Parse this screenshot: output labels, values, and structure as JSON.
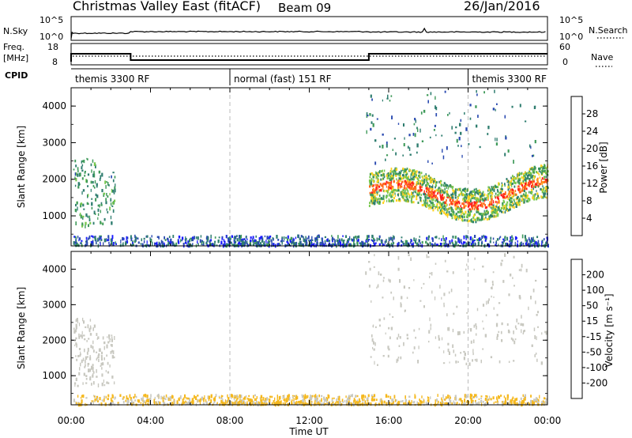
{
  "header": {
    "title": "Christmas Valley East (fitACF)",
    "beam": "Beam 09",
    "date": "26/Jan/2016"
  },
  "strips": {
    "nsky": {
      "label": "N.Sky",
      "right_label": "N.Search",
      "left_ticks": [
        "10^5",
        "10^0"
      ],
      "right_ticks": [
        "10^5",
        "10^0"
      ]
    },
    "freq": {
      "label_top": "Freq.",
      "label_bottom": "[MHz]",
      "right_label": "Nave",
      "left_ticks": [
        "18",
        "8"
      ],
      "right_ticks": [
        "60",
        "0"
      ],
      "segments": [
        {
          "start_h": 0,
          "end_h": 3,
          "freq_mhz": 13
        },
        {
          "start_h": 3,
          "end_h": 15,
          "freq_mhz": 9
        },
        {
          "start_h": 15,
          "end_h": 24,
          "freq_mhz": 13
        }
      ]
    },
    "cpid": {
      "label": "CPID",
      "segments": [
        {
          "start_h": 0,
          "end_h": 8,
          "text": "themis 3300 RF"
        },
        {
          "start_h": 8,
          "end_h": 20,
          "text": "normal (fast) 151 RF"
        },
        {
          "start_h": 20,
          "end_h": 24,
          "text": "themis 3300 RF"
        }
      ]
    }
  },
  "chart_data": [
    {
      "type": "heatmap",
      "quantity": "power",
      "ylabel": "Slant Range [km]",
      "ylim": [
        180,
        4500
      ],
      "xlim_h": [
        0,
        24
      ],
      "yticks": [
        "4000",
        "3000",
        "2000",
        "1000"
      ],
      "colorbar_label": "Power [dB]",
      "colorbar_ticks": [
        "28",
        "24",
        "20",
        "16",
        "12",
        "8",
        "4"
      ],
      "colorbar_range": [
        0,
        30
      ],
      "colors": [
        "#1a1aff",
        "#2a4ab0",
        "#2e7d6f",
        "#3f9a5a",
        "#78c84e",
        "#ffd21f",
        "#ffa01e",
        "#ff6a1a",
        "#ff1e1e"
      ],
      "regions": [
        {
          "name": "near-range band",
          "t": [
            0.1,
            24
          ],
          "r": [
            180,
            450
          ],
          "level": 6
        },
        {
          "name": "early echoes",
          "t": [
            0.1,
            2.2
          ],
          "r": [
            700,
            2600
          ],
          "level": 9
        },
        {
          "name": "evening strong echoes",
          "t": [
            15,
            24
          ],
          "r": [
            1300,
            2400
          ],
          "level": 22
        },
        {
          "name": "evening scattered",
          "t": [
            14.8,
            23.5
          ],
          "r": [
            2400,
            4400
          ],
          "level": 8
        }
      ]
    },
    {
      "type": "heatmap",
      "quantity": "velocity",
      "ylabel": "Slant Range [km]",
      "ylim": [
        180,
        4500
      ],
      "xlim_h": [
        0,
        24
      ],
      "yticks": [
        "4000",
        "3000",
        "2000",
        "1000"
      ],
      "colorbar_label": "Velocity [m s⁻¹]",
      "colorbar_ticks": [
        "200",
        "100",
        "50",
        "15",
        "-15",
        "-50",
        "-100",
        "-200"
      ],
      "colorbar_range": [
        -250,
        250
      ],
      "ground_scatter_color": "#c8c8c0",
      "colors": [
        "#e8101e",
        "#ff4a1a",
        "#ff8a1a",
        "#f5b81e",
        "#c8c8c0",
        "#88d04a",
        "#3f9a5a",
        "#2e64b0",
        "#1a2acc"
      ],
      "regions": [
        {
          "name": "near-range band",
          "t": [
            0.1,
            24
          ],
          "r": [
            180,
            450
          ],
          "level": -40
        },
        {
          "name": "early ground scatter",
          "t": [
            0.1,
            2.2
          ],
          "r": [
            700,
            2600
          ],
          "level": 0
        },
        {
          "name": "evening ground scatter",
          "t": [
            15,
            24
          ],
          "r": [
            1300,
            2400
          ],
          "level": 0
        },
        {
          "name": "evening scattered",
          "t": [
            14.8,
            23.5
          ],
          "r": [
            2400,
            4400
          ],
          "level": 0
        }
      ]
    }
  ],
  "xaxis": {
    "label": "Time UT",
    "ticks": [
      "00:00",
      "04:00",
      "08:00",
      "12:00",
      "16:00",
      "20:00",
      "00:00"
    ]
  }
}
